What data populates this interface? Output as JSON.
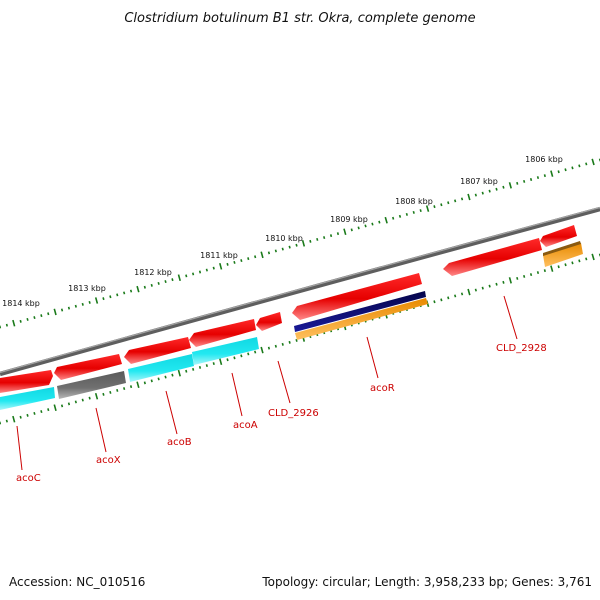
{
  "title": "Clostridium botulinum B1 str. Okra, complete genome",
  "footer": {
    "accession": "Accession: NC_010516",
    "topology": "Topology: circular; Length: 3,958,233 bp; Genes: 3,761"
  },
  "scale": {
    "unit": "kbp",
    "labels": [
      "1814 kbp",
      "1813 kbp",
      "1812 kbp",
      "1811 kbp",
      "1810 kbp",
      "1809 kbp",
      "1808 kbp",
      "1807 kbp",
      "1806 kbp"
    ]
  },
  "colors": {
    "backbone": "#808080",
    "scale_ticks": "#1a7a1a",
    "gene": "#ee0000",
    "label": "#cc0000",
    "cyan_track": "#22e5ee",
    "gray_track": "#6e6e6e",
    "navy_track": "#0a0a78",
    "orange_track": "#f29a1a"
  },
  "genes": [
    {
      "label": "acoC"
    },
    {
      "label": "acoX"
    },
    {
      "label": "acoB"
    },
    {
      "label": "acoA"
    },
    {
      "label": "CLD_2926"
    },
    {
      "label": "acoR"
    },
    {
      "label": "CLD_2928"
    }
  ]
}
